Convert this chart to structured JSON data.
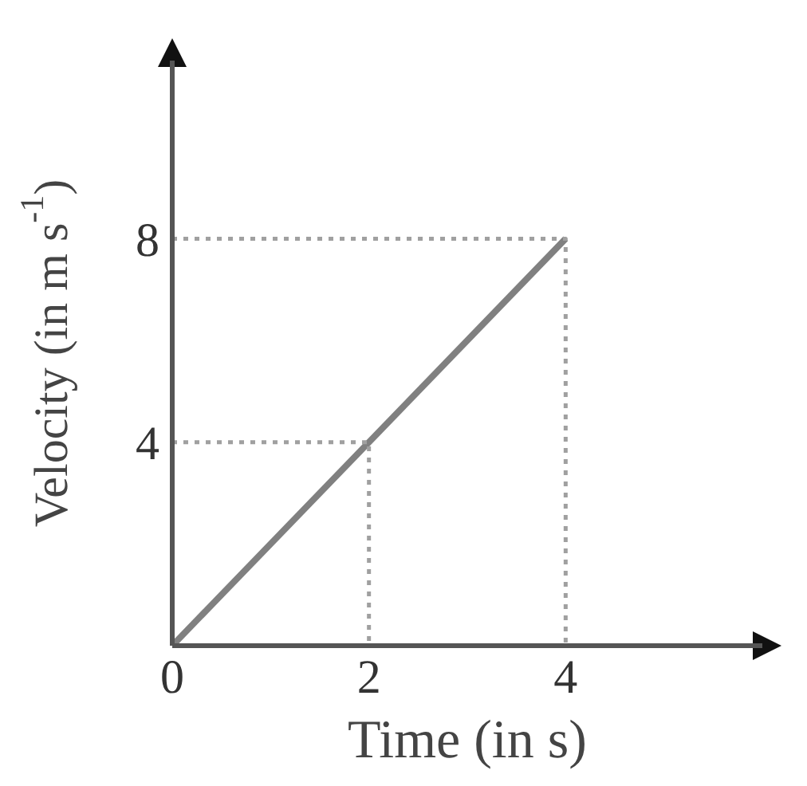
{
  "chart_data": {
    "type": "line",
    "xlabel": "Time (in s)",
    "ylabel": "Velocity (in m s$^{-1}$)",
    "xlim": [
      0,
      6
    ],
    "ylim": [
      0,
      11.5
    ],
    "xticks": [
      0,
      2,
      4
    ],
    "yticks": [
      4,
      8
    ],
    "marker": "none",
    "series": [
      {
        "color": "#808080",
        "x": [
          0,
          4
        ],
        "values": [
          0,
          8
        ],
        "line_style": "solid"
      },
      {
        "color": "#a0a0a0",
        "x": [
          0,
          2,
          2
        ],
        "values": [
          4,
          4,
          0
        ],
        "line_style": "dotted"
      },
      {
        "color": "#a0a0a0",
        "x": [
          0,
          4,
          4
        ],
        "values": [
          8,
          8,
          0
        ],
        "line_style": "dotted"
      }
    ]
  }
}
